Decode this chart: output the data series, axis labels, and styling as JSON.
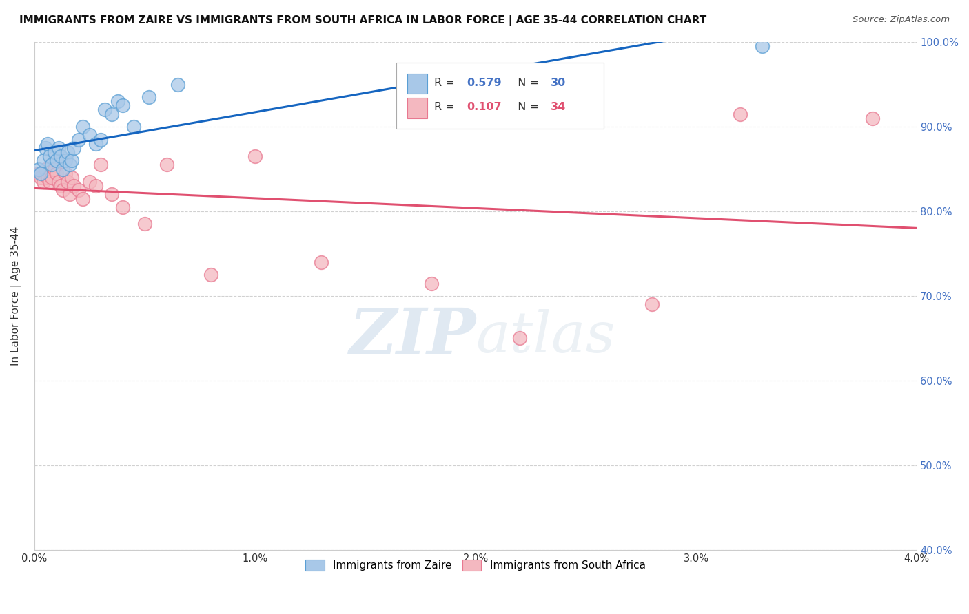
{
  "title": "IMMIGRANTS FROM ZAIRE VS IMMIGRANTS FROM SOUTH AFRICA IN LABOR FORCE | AGE 35-44 CORRELATION CHART",
  "source": "Source: ZipAtlas.com",
  "ylabel": "In Labor Force | Age 35-44",
  "xlim": [
    0.0,
    4.0
  ],
  "ylim": [
    40.0,
    100.0
  ],
  "xticks": [
    0.0,
    1.0,
    2.0,
    3.0,
    4.0
  ],
  "xtick_labels": [
    "0.0%",
    "1.0%",
    "2.0%",
    "3.0%",
    "4.0%"
  ],
  "yticks": [
    40.0,
    50.0,
    60.0,
    70.0,
    80.0,
    90.0,
    100.0
  ],
  "ytick_labels": [
    "40.0%",
    "50.0%",
    "60.0%",
    "70.0%",
    "80.0%",
    "90.0%",
    "100.0%"
  ],
  "zaire_color": "#a8c8e8",
  "sa_color": "#f4b8c0",
  "zaire_edge_color": "#5a9fd4",
  "sa_edge_color": "#e87890",
  "zaire_line_color": "#1565c0",
  "sa_line_color": "#e05070",
  "zaire_R": 0.579,
  "zaire_N": 30,
  "sa_R": 0.107,
  "sa_N": 34,
  "watermark_zip": "ZIP",
  "watermark_atlas": "atlas",
  "legend_zaire": "Immigrants from Zaire",
  "legend_sa": "Immigrants from South Africa",
  "background_color": "#ffffff",
  "grid_color": "#cccccc",
  "zaire_x": [
    0.02,
    0.03,
    0.04,
    0.05,
    0.06,
    0.07,
    0.08,
    0.09,
    0.1,
    0.11,
    0.12,
    0.13,
    0.14,
    0.15,
    0.16,
    0.17,
    0.18,
    0.2,
    0.22,
    0.25,
    0.28,
    0.3,
    0.32,
    0.35,
    0.38,
    0.4,
    0.45,
    0.52,
    0.65,
    3.3
  ],
  "zaire_y": [
    85.0,
    84.5,
    86.0,
    87.5,
    88.0,
    86.5,
    85.5,
    87.0,
    86.0,
    87.5,
    86.5,
    85.0,
    86.0,
    87.0,
    85.5,
    86.0,
    87.5,
    88.5,
    90.0,
    89.0,
    88.0,
    88.5,
    92.0,
    91.5,
    93.0,
    92.5,
    90.0,
    93.5,
    95.0,
    99.5
  ],
  "sa_x": [
    0.02,
    0.03,
    0.04,
    0.05,
    0.06,
    0.07,
    0.08,
    0.09,
    0.1,
    0.11,
    0.12,
    0.13,
    0.14,
    0.15,
    0.16,
    0.17,
    0.18,
    0.2,
    0.22,
    0.25,
    0.28,
    0.3,
    0.35,
    0.4,
    0.5,
    0.6,
    0.8,
    1.0,
    1.3,
    1.8,
    2.2,
    2.8,
    3.2,
    3.8
  ],
  "sa_y": [
    84.5,
    84.0,
    83.5,
    85.0,
    84.0,
    83.5,
    84.0,
    85.0,
    84.5,
    83.5,
    83.0,
    82.5,
    84.5,
    83.5,
    82.0,
    84.0,
    83.0,
    82.5,
    81.5,
    83.5,
    83.0,
    85.5,
    82.0,
    80.5,
    78.5,
    85.5,
    72.5,
    86.5,
    74.0,
    71.5,
    65.0,
    69.0,
    91.5,
    91.0
  ]
}
